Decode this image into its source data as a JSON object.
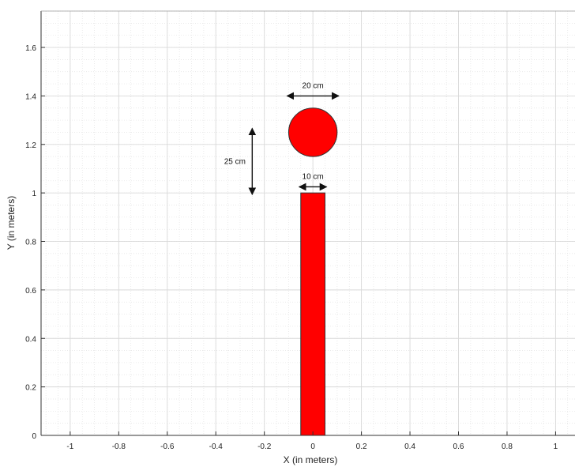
{
  "chart_data": {
    "type": "diagram",
    "xlabel": "X (in meters)",
    "ylabel": "Y (in meters)",
    "xlim": [
      -1.12,
      1.08
    ],
    "ylim": [
      0,
      1.75
    ],
    "x_ticks": [
      -1,
      -0.8,
      -0.6,
      -0.4,
      -0.2,
      0,
      0.2,
      0.4,
      0.6,
      0.8,
      1
    ],
    "x_tick_labels": [
      "-1",
      "-0.8",
      "-0.6",
      "-0.4",
      "-0.2",
      "0",
      "0.2",
      "0.4",
      "0.6",
      "0.8",
      "1"
    ],
    "y_ticks": [
      0,
      0.2,
      0.4,
      0.6,
      0.8,
      1,
      1.2,
      1.4,
      1.6
    ],
    "y_tick_labels": [
      "0",
      "0.2",
      "0.4",
      "0.6",
      "0.8",
      "1",
      "1.2",
      "1.4",
      "1.6"
    ],
    "grid": true,
    "minor_grid": true,
    "colors": {
      "fill": "#ff0000",
      "outline": "#333333",
      "grid": "#e2e2e2",
      "axis": "#333333"
    },
    "shapes": {
      "bar": {
        "x_min": -0.05,
        "x_max": 0.05,
        "y_min": 0,
        "y_max": 1.0
      },
      "circle": {
        "cx": 0,
        "cy": 1.25,
        "r": 0.1
      }
    },
    "dimensions": [
      {
        "label": "20 cm",
        "orientation": "horizontal",
        "from": -0.1,
        "to": 0.1,
        "at": 1.4
      },
      {
        "label": "10 cm",
        "orientation": "horizontal",
        "from": -0.05,
        "to": 0.05,
        "at": 1.025
      },
      {
        "label": "25 cm",
        "orientation": "vertical",
        "from": 1.0,
        "to": 1.25,
        "at": -0.25
      }
    ]
  }
}
